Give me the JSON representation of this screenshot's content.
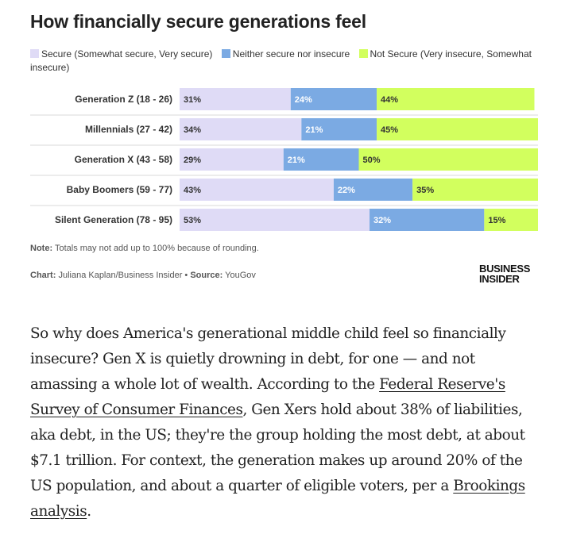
{
  "title": "How financially secure generations feel",
  "legend": [
    {
      "label": "Secure (Somewhat secure, Very secure)",
      "color": "#dfdbf6"
    },
    {
      "label": "Neither secure nor insecure",
      "color": "#7baae3"
    },
    {
      "label": "Not Secure (Very insecure, Somewhat insecure)",
      "color": "#d2ff5e"
    }
  ],
  "chart_data": {
    "type": "bar",
    "orientation": "horizontal",
    "stacked": true,
    "title": "How financially secure generations feel",
    "categories": [
      "Generation Z (18 - 26)",
      "Millennials (27 - 42)",
      "Generation X (43 - 58)",
      "Baby Boomers (59 - 77)",
      "Silent Generation (78 - 95)"
    ],
    "series": [
      {
        "name": "Secure (Somewhat secure, Very secure)",
        "values": [
          31,
          34,
          29,
          43,
          53
        ],
        "labels": [
          "31%",
          "34%",
          "29%",
          "43%",
          "53%"
        ],
        "color": "#dfdbf6"
      },
      {
        "name": "Neither secure nor insecure",
        "values": [
          24,
          21,
          21,
          22,
          32
        ],
        "labels": [
          "24%",
          "21%",
          "21%",
          "22%",
          "32%"
        ],
        "color": "#7baae3"
      },
      {
        "name": "Not Secure (Very insecure, Somewhat insecure)",
        "values": [
          44,
          45,
          50,
          35,
          15
        ],
        "labels": [
          "44%",
          "45%",
          "50%",
          "35%",
          "15%"
        ],
        "color": "#d2ff5e"
      }
    ],
    "xlim": [
      0,
      100
    ],
    "legend_position": "top",
    "grid": false
  },
  "note": {
    "prefix": "Note:",
    "text": " Totals may not add up to 100% because of rounding."
  },
  "credit": {
    "chart_prefix": "Chart:",
    "chart_text": " Juliana Kaplan/Business Insider • ",
    "source_prefix": "Source:",
    "source_text": " YouGov"
  },
  "logo": {
    "line1": "BUSINESS",
    "line2": "INSIDER"
  },
  "article": {
    "part1": "So why does America's generational middle child feel so financially insecure? Gen X is quietly drowning in debt, for one — and not amassing a whole lot of wealth. According to the ",
    "link1": "Federal Reserve's Survey of Consumer Finances",
    "part2": ", Gen Xers hold about 38% of liabilities, aka debt, in the US; they're the group holding the most debt, at about $7.1 trillion. For context, the generation makes up around 20% of the US population, and about a quarter of eligible voters, per a ",
    "link2": "Brookings analysis",
    "part3": "."
  }
}
